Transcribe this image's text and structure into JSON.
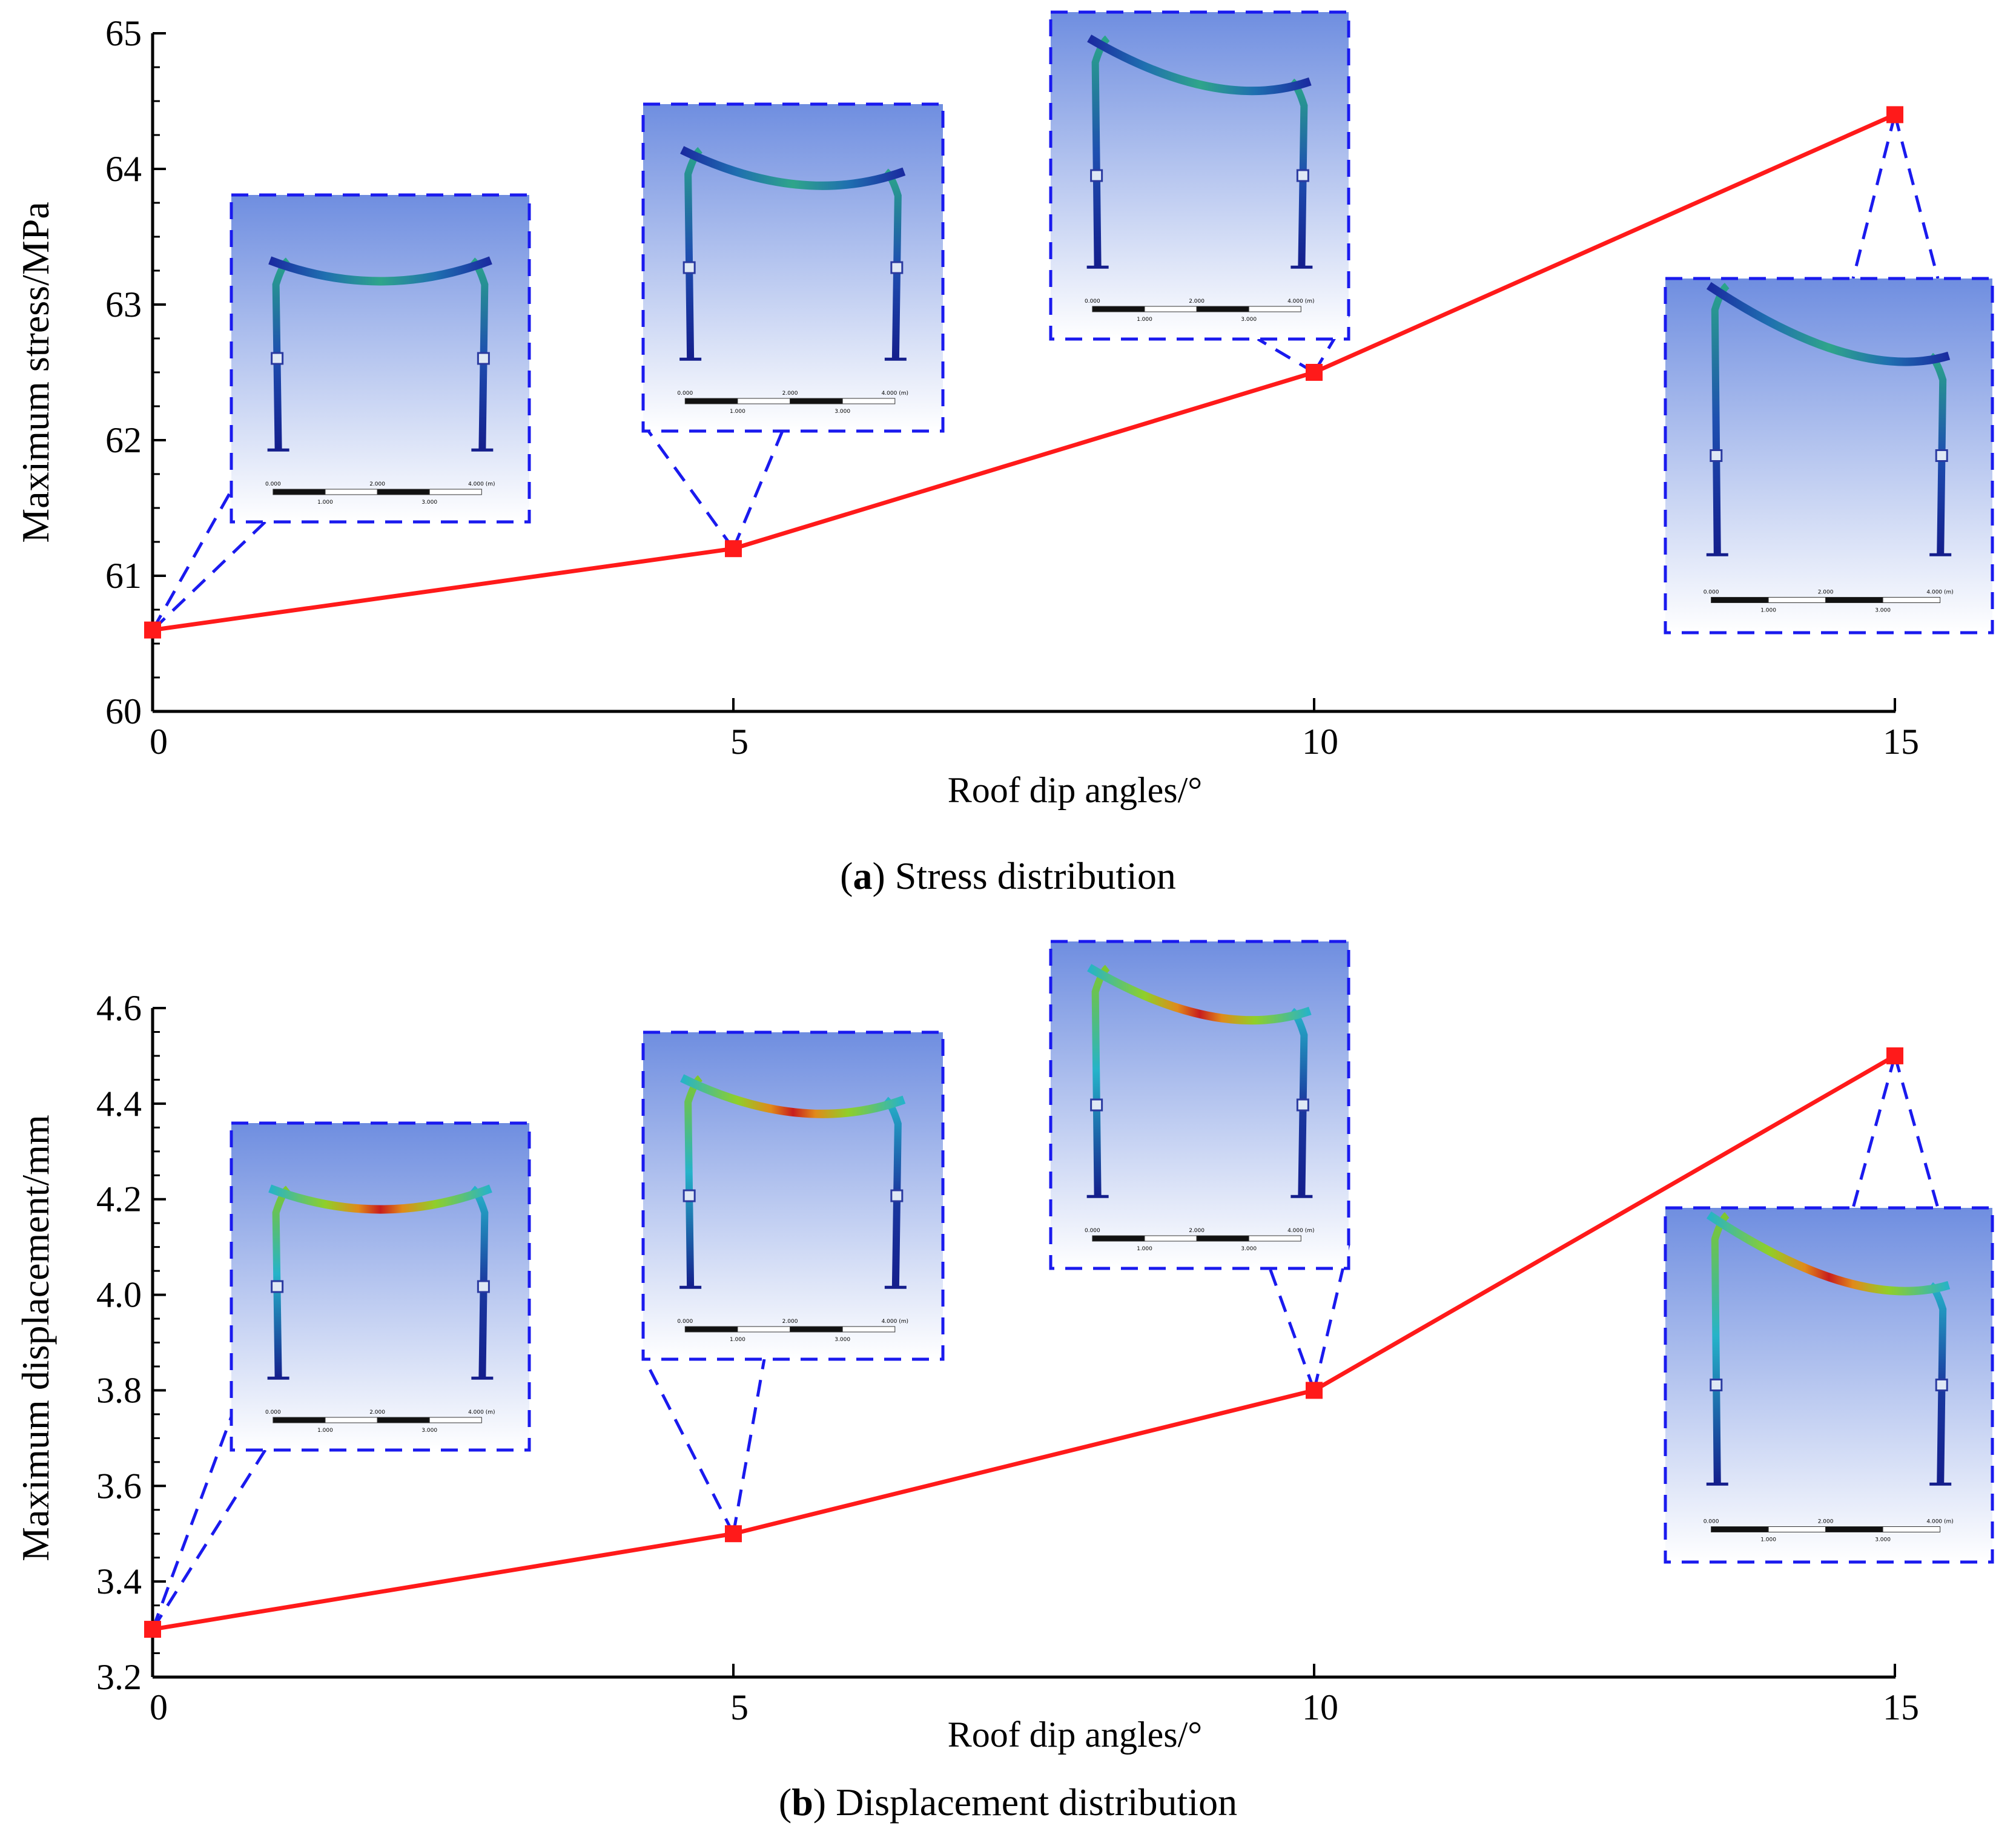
{
  "colors": {
    "line": "#ff1a1a",
    "marker": "#ff1a1a",
    "callout": "#1a1aee",
    "axis": "#000000",
    "inset_sky_top": "#6f8ee0",
    "inset_sky_bottom": "#ffffff"
  },
  "inset_scale_labels": [
    "0.000",
    "1.000",
    "2.000",
    "3.000",
    "4.000 (m)"
  ],
  "chart_data": [
    {
      "type": "line",
      "panel": "a",
      "caption_letter": "a",
      "caption_text": "Stress distribution",
      "xlabel": "Roof dip angles/°",
      "ylabel": "Maximum stress/MPa",
      "x": [
        0,
        5,
        10,
        15
      ],
      "x_ticks": [
        "0",
        "5",
        "10",
        "15"
      ],
      "xlim": [
        0,
        15
      ],
      "ylim": [
        60,
        65
      ],
      "y_ticks": [
        "60",
        "61",
        "62",
        "63",
        "64",
        "65"
      ],
      "series": [
        {
          "name": "Maximum stress",
          "values": [
            60.6,
            61.2,
            62.5,
            64.4
          ]
        }
      ],
      "insets": [
        {
          "x": 0,
          "contour": "stress",
          "dip": 0
        },
        {
          "x": 5,
          "contour": "stress",
          "dip": 5
        },
        {
          "x": 10,
          "contour": "stress",
          "dip": 10
        },
        {
          "x": 15,
          "contour": "stress",
          "dip": 15
        }
      ]
    },
    {
      "type": "line",
      "panel": "b",
      "caption_letter": "b",
      "caption_text": "Displacement distribution",
      "xlabel": "Roof dip angles/°",
      "ylabel": "Maximum displacement/mm",
      "x": [
        0,
        5,
        10,
        15
      ],
      "x_ticks": [
        "0",
        "5",
        "10",
        "15"
      ],
      "xlim": [
        0,
        15
      ],
      "ylim": [
        3.2,
        4.6
      ],
      "y_ticks": [
        "3.2",
        "3.4",
        "3.6",
        "3.8",
        "4.0",
        "4.2",
        "4.4",
        "4.6"
      ],
      "series": [
        {
          "name": "Maximum displacement",
          "values": [
            3.3,
            3.5,
            3.8,
            4.5
          ]
        }
      ],
      "insets": [
        {
          "x": 0,
          "contour": "displacement",
          "dip": 0
        },
        {
          "x": 5,
          "contour": "displacement",
          "dip": 5
        },
        {
          "x": 10,
          "contour": "displacement",
          "dip": 10
        },
        {
          "x": 15,
          "contour": "displacement",
          "dip": 15
        }
      ]
    }
  ]
}
